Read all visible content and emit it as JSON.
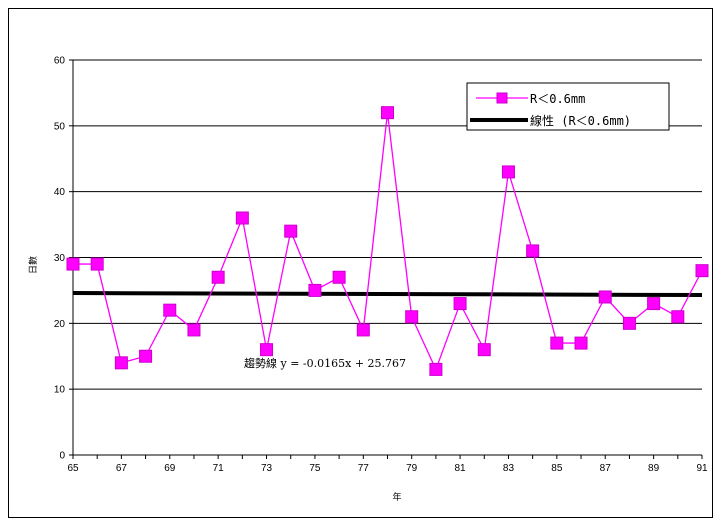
{
  "chart_data": {
    "type": "line",
    "title": "",
    "xlabel": "年",
    "ylabel": "日數",
    "ylim": [
      0,
      60
    ],
    "yticks": [
      0,
      10,
      20,
      30,
      40,
      50,
      60
    ],
    "xlim": [
      65,
      91
    ],
    "xticks": [
      65,
      67,
      69,
      71,
      73,
      75,
      77,
      79,
      81,
      83,
      85,
      87,
      89,
      91
    ],
    "x": [
      65,
      66,
      67,
      68,
      69,
      70,
      71,
      72,
      73,
      74,
      75,
      76,
      77,
      78,
      79,
      80,
      81,
      82,
      83,
      84,
      85,
      86,
      87,
      88,
      89,
      90,
      91
    ],
    "series": [
      {
        "name": "R＜0.6mm",
        "color": "#ff00ff",
        "marker": "square",
        "values": [
          29,
          29,
          14,
          15,
          22,
          19,
          27,
          36,
          16,
          34,
          25,
          27,
          19,
          52,
          21,
          13,
          23,
          16,
          43,
          31,
          17,
          17,
          24,
          20,
          23,
          21,
          28
        ]
      },
      {
        "name": "線性 (R＜0.6mm)",
        "color": "#000000",
        "type": "trendline",
        "values_endpoints": [
          24.6,
          24.3
        ]
      }
    ],
    "trend_label": "趨勢線 y = -0.0165x + 25.767",
    "legend_position": "top-right",
    "grid": "horizontal"
  }
}
